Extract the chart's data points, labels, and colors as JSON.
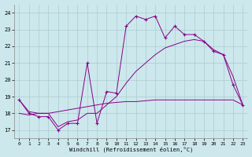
{
  "background_color": "#cce8ec",
  "grid_color": "#aaccd0",
  "line_color": "#880088",
  "xlabel": "Windchill (Refroidissement éolien,°C)",
  "xlim": [
    -0.5,
    23.5
  ],
  "ylim": [
    16.5,
    24.5
  ],
  "yticks": [
    17,
    18,
    19,
    20,
    21,
    22,
    23,
    24
  ],
  "xticks": [
    0,
    1,
    2,
    3,
    4,
    5,
    6,
    7,
    8,
    9,
    10,
    11,
    12,
    13,
    14,
    15,
    16,
    17,
    18,
    19,
    20,
    21,
    22,
    23
  ],
  "line1_x": [
    0,
    1,
    2,
    3,
    4,
    5,
    6,
    7,
    8,
    9,
    10,
    11,
    12,
    13,
    14,
    15,
    16,
    17,
    18,
    19,
    20,
    21,
    22,
    23
  ],
  "line1_y": [
    18.8,
    18.0,
    17.8,
    17.8,
    17.0,
    17.4,
    17.4,
    21.0,
    17.4,
    19.3,
    19.2,
    23.2,
    23.8,
    23.6,
    23.8,
    22.5,
    23.2,
    22.7,
    22.7,
    22.3,
    21.7,
    21.5,
    19.7,
    18.5
  ],
  "line2_x": [
    0,
    1,
    2,
    3,
    4,
    5,
    6,
    7,
    8,
    9,
    10,
    11,
    12,
    13,
    14,
    15,
    16,
    17,
    18,
    19,
    20,
    21,
    22,
    23
  ],
  "line2_y": [
    18.0,
    17.9,
    18.0,
    18.0,
    18.1,
    18.2,
    18.3,
    18.4,
    18.5,
    18.6,
    18.65,
    18.7,
    18.7,
    18.75,
    18.8,
    18.8,
    18.8,
    18.8,
    18.8,
    18.8,
    18.8,
    18.8,
    18.8,
    18.5
  ],
  "line3_x": [
    0,
    1,
    2,
    3,
    4,
    5,
    6,
    7,
    8,
    9,
    10,
    11,
    12,
    13,
    14,
    15,
    16,
    17,
    18,
    19,
    20,
    21,
    22,
    23
  ],
  "line3_y": [
    18.8,
    18.1,
    18.0,
    18.0,
    17.2,
    17.5,
    17.6,
    18.0,
    18.0,
    18.5,
    19.0,
    19.8,
    20.5,
    21.0,
    21.5,
    21.9,
    22.1,
    22.3,
    22.4,
    22.3,
    21.8,
    21.5,
    20.2,
    18.5
  ]
}
